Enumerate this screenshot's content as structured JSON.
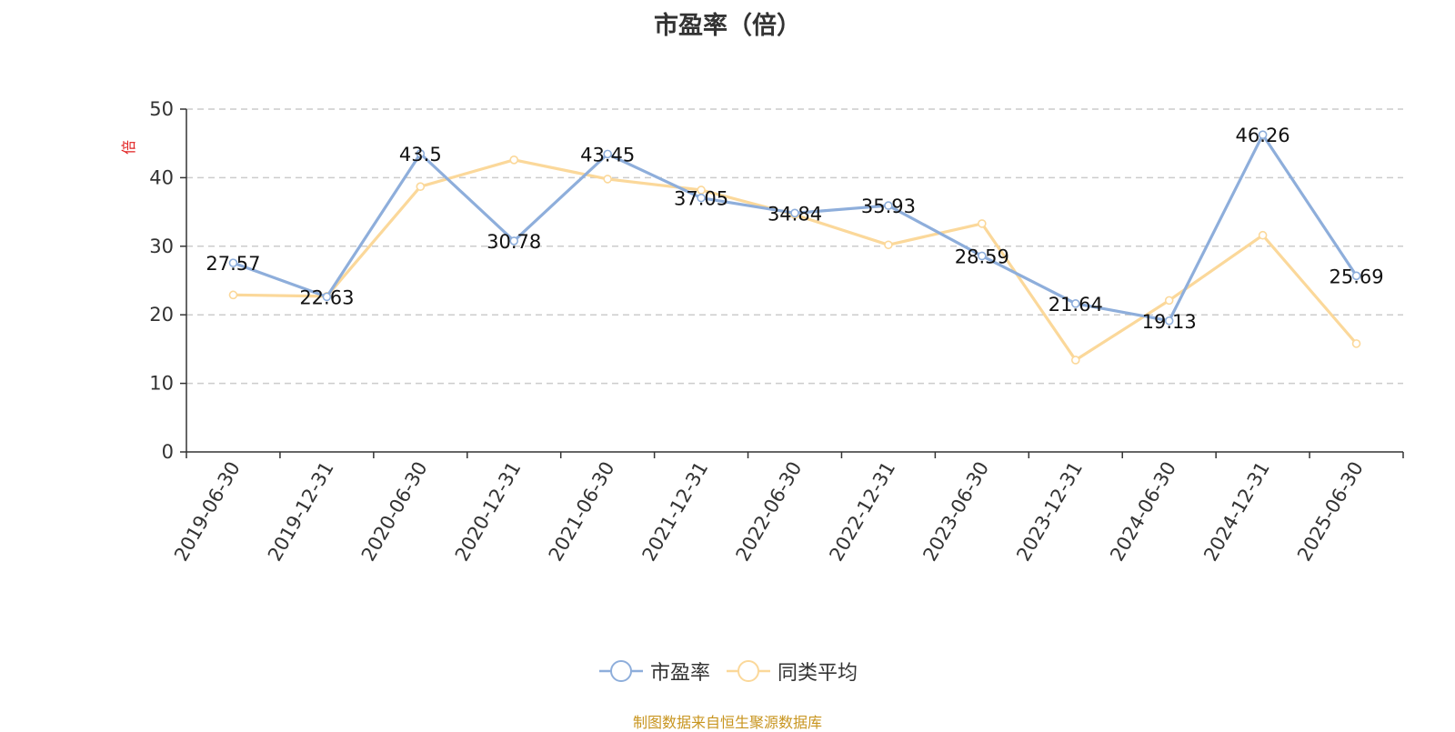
{
  "chart_data": {
    "type": "line",
    "title": "市盈率（倍）",
    "ylabel": "倍",
    "xlabel": "",
    "categories": [
      "2019-06-30",
      "2019-12-31",
      "2020-06-30",
      "2020-12-31",
      "2021-06-30",
      "2021-12-31",
      "2022-06-30",
      "2022-12-31",
      "2023-06-30",
      "2023-12-31",
      "2024-06-30",
      "2024-12-31",
      "2025-06-30"
    ],
    "ylim": [
      0,
      50
    ],
    "yticks": [
      0,
      10,
      20,
      30,
      40,
      50
    ],
    "grid": true,
    "legend_position": "bottom",
    "series": [
      {
        "name": "市盈率",
        "color": "#8eaedb",
        "show_labels": true,
        "values": [
          27.57,
          22.63,
          43.5,
          30.78,
          43.45,
          37.05,
          34.84,
          35.93,
          28.59,
          21.64,
          19.13,
          46.26,
          25.69
        ]
      },
      {
        "name": "同类平均",
        "color": "#fbd89a",
        "show_labels": false,
        "values": [
          22.9,
          22.7,
          38.7,
          42.6,
          39.8,
          38.2,
          34.6,
          30.2,
          33.3,
          13.4,
          22.1,
          31.6,
          15.8
        ]
      }
    ]
  },
  "source": "制图数据来自恒生聚源数据库"
}
